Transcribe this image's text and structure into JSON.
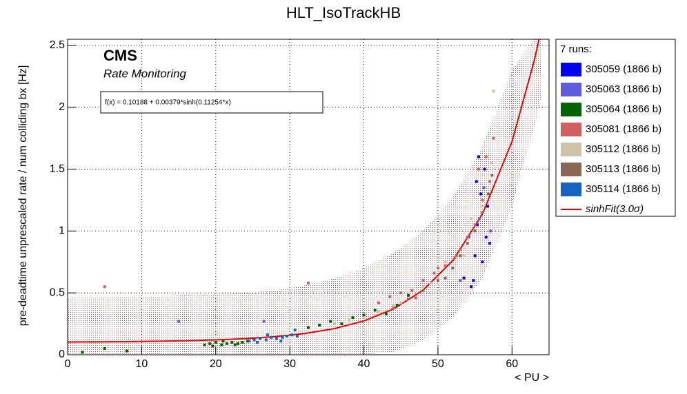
{
  "chart_data": {
    "type": "scatter",
    "title": "HLT_IsoTrackHB",
    "x_label": "< PU >",
    "y_label": "pre-deadtime unprescaled rate / num colliding bx [Hz]",
    "annotations": [
      "CMS",
      "Rate Monitoring"
    ],
    "fit_label": "f(x) = 0.10188 + 0.00379*sinh(0.11254*x)",
    "legend_title": "7 runs:",
    "xlim": [
      0,
      65
    ],
    "ylim": [
      0,
      2.55
    ],
    "xticks": [
      0,
      10,
      20,
      30,
      40,
      50,
      60
    ],
    "yticks": [
      0,
      0.5,
      1,
      1.5,
      2,
      2.5
    ],
    "grid": true,
    "series": [
      {
        "name": "305059 (1866 b)",
        "color": "#0000ee",
        "x": [
          54.5,
          55.0,
          55.3,
          55.8,
          56.0,
          56.3,
          56.7,
          57.0,
          55.5,
          54.8,
          56.5,
          55.2,
          53.5
        ],
        "values": [
          0.55,
          0.8,
          1.05,
          1.3,
          0.75,
          1.5,
          1.2,
          0.9,
          1.6,
          0.6,
          0.95,
          1.4,
          0.62
        ]
      },
      {
        "name": "305063 (1866 b)",
        "color": "#5c5cdc",
        "x": [
          15.0,
          26.5,
          53.0,
          54.2,
          55.6,
          56.2,
          57.1
        ],
        "values": [
          0.27,
          0.27,
          0.6,
          0.95,
          1.1,
          1.35,
          1.0
        ]
      },
      {
        "name": "305064 (1866 b)",
        "color": "#006400",
        "x": [
          18.5,
          19.2,
          20.0,
          20.8,
          21.5,
          22.2,
          23.0,
          23.6,
          24.3,
          19.6,
          21.0,
          22.6,
          32.5,
          34.0,
          35.5,
          37.0,
          38.5,
          40.0,
          41.5,
          43.0,
          44.5,
          46.0,
          2.0,
          5.0,
          8.0
        ],
        "values": [
          0.08,
          0.09,
          0.1,
          0.08,
          0.09,
          0.1,
          0.09,
          0.1,
          0.11,
          0.07,
          0.11,
          0.08,
          0.22,
          0.24,
          0.27,
          0.25,
          0.3,
          0.32,
          0.36,
          0.33,
          0.4,
          0.48,
          0.02,
          0.05,
          0.03
        ]
      },
      {
        "name": "305081 (1866 b)",
        "color": "#d06060",
        "x": [
          5.0,
          42.0,
          43.5,
          45.0,
          46.5,
          48.0,
          49.5,
          51.0,
          52.5,
          54.0,
          55.0,
          56.0,
          57.0,
          57.5,
          44.0,
          47.0,
          50.0,
          53.0,
          55.5,
          56.5,
          32.5
        ],
        "values": [
          0.55,
          0.42,
          0.47,
          0.5,
          0.52,
          0.6,
          0.66,
          0.72,
          0.8,
          0.95,
          1.05,
          1.25,
          1.4,
          1.75,
          0.38,
          0.46,
          0.7,
          0.85,
          1.5,
          1.6,
          0.58
        ]
      },
      {
        "name": "305112 (1866 b)",
        "color": "#cdc3a8",
        "x": [
          36.0,
          38.0,
          40.0,
          42.0,
          44.0,
          46.0,
          48.0,
          50.0,
          52.0,
          53.5,
          55.0,
          56.0,
          57.2,
          45.0,
          49.0,
          51.0,
          54.5,
          57.5
        ],
        "values": [
          0.25,
          0.28,
          0.3,
          0.35,
          0.4,
          0.45,
          0.55,
          0.62,
          0.7,
          0.8,
          1.0,
          1.2,
          1.55,
          0.42,
          0.58,
          0.75,
          1.1,
          2.13
        ]
      },
      {
        "name": "305113 (1866 b)",
        "color": "#8b6655",
        "x": [
          46.0,
          48.0,
          50.0,
          52.0,
          53.0,
          54.0,
          55.0,
          56.0,
          56.8,
          57.3,
          51.0
        ],
        "values": [
          0.45,
          0.52,
          0.6,
          0.7,
          0.8,
          0.9,
          1.0,
          1.15,
          1.3,
          1.45,
          0.62
        ]
      },
      {
        "name": "305114 (1866 b)",
        "color": "#1565c0",
        "x": [
          24.5,
          25.2,
          26.0,
          26.8,
          27.5,
          28.2,
          29.0,
          29.6,
          30.3,
          31.0,
          25.6,
          27.0,
          28.8,
          30.7
        ],
        "values": [
          0.11,
          0.12,
          0.13,
          0.12,
          0.14,
          0.13,
          0.14,
          0.15,
          0.16,
          0.15,
          0.1,
          0.16,
          0.11,
          0.2
        ]
      },
      {
        "name": "sinhFit(3.0σ)",
        "color": "#ee0000",
        "kind": "fit",
        "x": [
          0,
          4,
          8,
          12,
          16,
          20,
          24,
          28,
          32,
          36,
          40,
          44,
          48,
          52,
          56,
          60,
          63,
          64
        ],
        "values": [
          0.102,
          0.104,
          0.106,
          0.109,
          0.113,
          0.12,
          0.13,
          0.146,
          0.171,
          0.211,
          0.273,
          0.37,
          0.522,
          0.761,
          1.136,
          1.724,
          2.376,
          2.645
        ],
        "upper": [
          0.46,
          0.46,
          0.47,
          0.47,
          0.48,
          0.49,
          0.5,
          0.52,
          0.56,
          0.62,
          0.7,
          0.82,
          1.0,
          1.27,
          1.68,
          2.3,
          2.55,
          2.55
        ],
        "lower": [
          0,
          0,
          0,
          0,
          0,
          0,
          0,
          0,
          0,
          0,
          0,
          0.02,
          0.12,
          0.3,
          0.62,
          1.2,
          1.85,
          2.1
        ]
      }
    ]
  }
}
